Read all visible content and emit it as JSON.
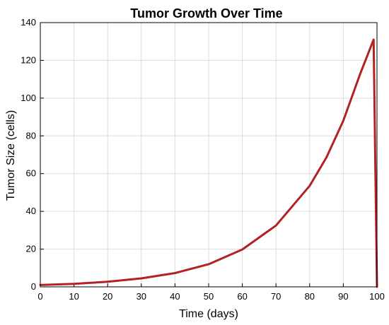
{
  "chart_data": {
    "type": "line",
    "title": "Tumor Growth Over Time",
    "xlabel": "Time (days)",
    "ylabel": "Tumor Size (cells)",
    "xlim": [
      0,
      100
    ],
    "ylim": [
      0,
      140
    ],
    "xticks": [
      0,
      10,
      20,
      30,
      40,
      50,
      60,
      70,
      80,
      90,
      100
    ],
    "yticks": [
      0,
      20,
      40,
      60,
      80,
      100,
      120,
      140
    ],
    "grid": true,
    "legend": false,
    "series": [
      {
        "color": "#b22222",
        "x": [
          0,
          10,
          20,
          30,
          40,
          50,
          60,
          70,
          80,
          85,
          90,
          95,
          99,
          100
        ],
        "y": [
          1,
          1.6,
          2.7,
          4.5,
          7.3,
          12,
          19.8,
          32.5,
          53.5,
          68.6,
          88,
          112.8,
          131,
          0
        ]
      }
    ]
  }
}
